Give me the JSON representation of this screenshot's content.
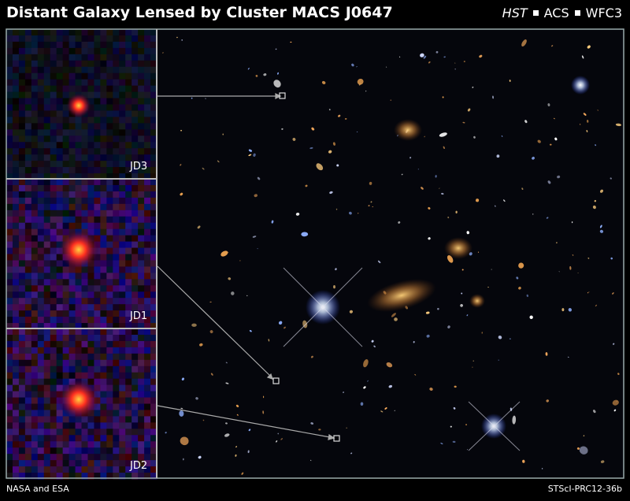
{
  "header": {
    "title": "Distant Galaxy Lensed by Cluster MACS J0647",
    "instruments": [
      "HST",
      "ACS",
      "WFC3"
    ]
  },
  "panels": [
    {
      "label": "JD3"
    },
    {
      "label": "JD1"
    },
    {
      "label": "JD2"
    }
  ],
  "footer": {
    "credit": "NASA and ESA",
    "release": "STScI-PRC12-36b"
  }
}
